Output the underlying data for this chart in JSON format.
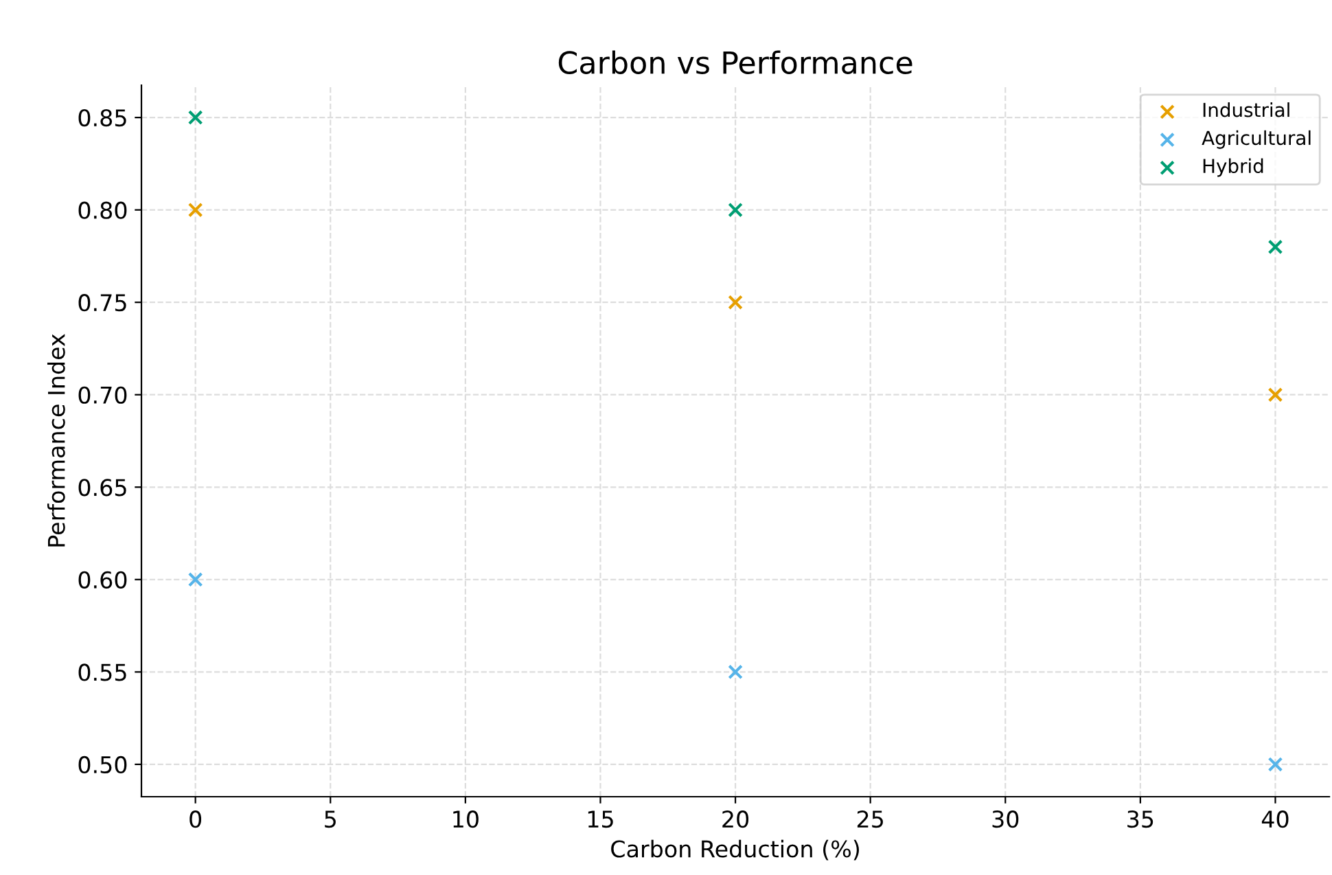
{
  "chart_data": {
    "type": "scatter",
    "title": "Carbon vs Performance",
    "xlabel": "Carbon Reduction (%)",
    "ylabel": "Performance Index",
    "series": [
      {
        "name": "Industrial",
        "color": "#e69f00",
        "x": [
          0,
          20,
          40
        ],
        "values": [
          0.8,
          0.75,
          0.7
        ]
      },
      {
        "name": "Agricultural",
        "color": "#56b4e9",
        "x": [
          0,
          20,
          40
        ],
        "values": [
          0.6,
          0.55,
          0.5
        ]
      },
      {
        "name": "Hybrid",
        "color": "#009e73",
        "x": [
          0,
          20,
          40
        ],
        "values": [
          0.85,
          0.8,
          0.78
        ]
      }
    ],
    "xlim": [
      -2,
      42
    ],
    "xticks": [
      0,
      5,
      10,
      15,
      20,
      25,
      30,
      35,
      40
    ],
    "ylim": [
      0.4825,
      0.8675
    ],
    "yticks": [
      {
        "value": 0.5,
        "label": "0.50"
      },
      {
        "value": 0.55,
        "label": "0.55"
      },
      {
        "value": 0.6,
        "label": "0.60"
      },
      {
        "value": 0.65,
        "label": "0.65"
      },
      {
        "value": 0.7,
        "label": "0.70"
      },
      {
        "value": 0.75,
        "label": "0.75"
      },
      {
        "value": 0.8,
        "label": "0.80"
      },
      {
        "value": 0.85,
        "label": "0.85"
      }
    ],
    "grid": true,
    "legend": "top right",
    "marker": "cross"
  }
}
